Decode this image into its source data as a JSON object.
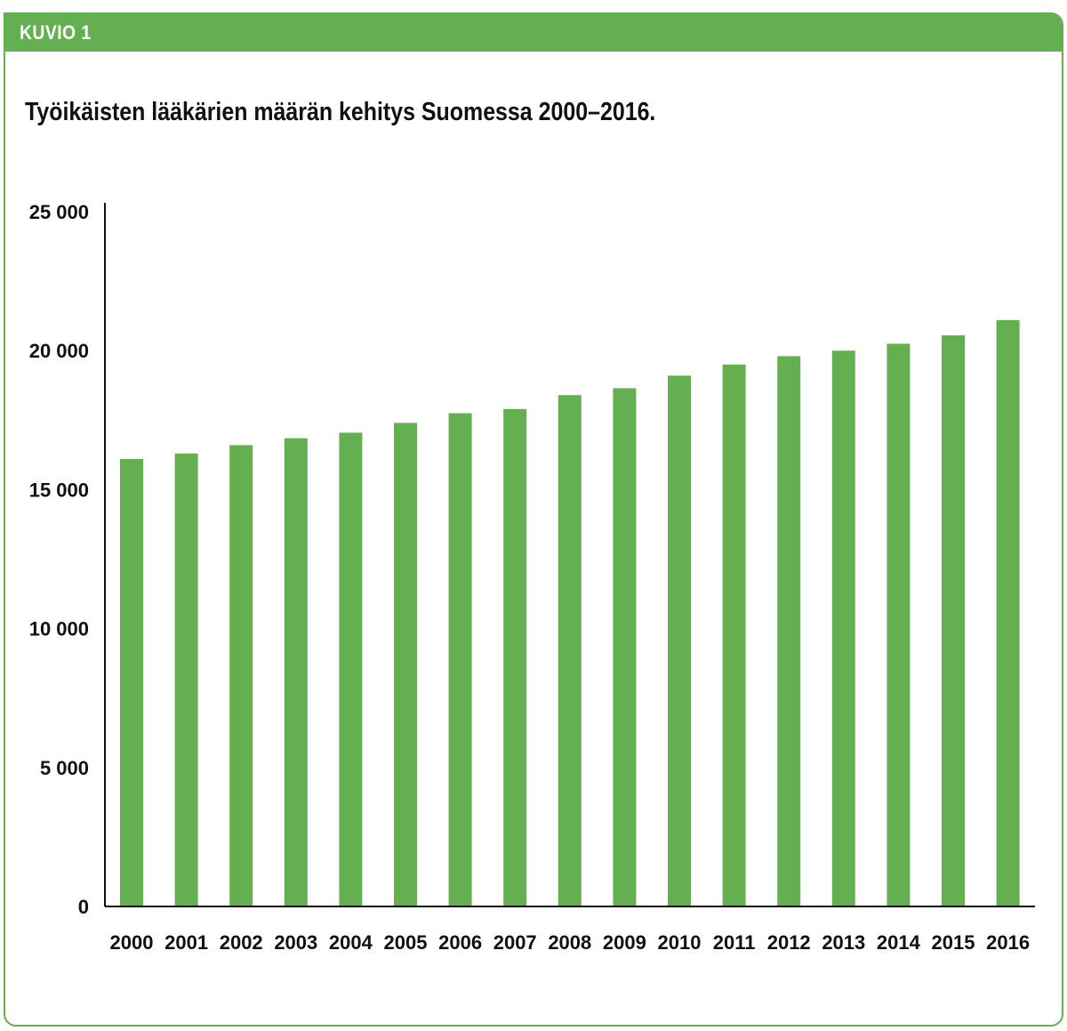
{
  "figure_label": "KUVIO 1",
  "colors": {
    "accent": "#64b050",
    "bar": "#64b050",
    "axis": "#111111",
    "text": "#111111"
  },
  "chart_data": {
    "type": "bar",
    "title": "Työikäisten lääkärien määrän kehitys Suomessa 2000–2016.",
    "xlabel": "",
    "ylabel": "",
    "ylim": [
      0,
      25000
    ],
    "y_ticks": [
      0,
      5000,
      10000,
      15000,
      20000,
      25000
    ],
    "y_tick_labels": [
      "0",
      "5 000",
      "10 000",
      "15 000",
      "20 000",
      "25 000"
    ],
    "categories": [
      "2000",
      "2001",
      "2002",
      "2003",
      "2004",
      "2005",
      "2006",
      "2007",
      "2008",
      "2009",
      "2010",
      "2011",
      "2012",
      "2013",
      "2014",
      "2015",
      "2016"
    ],
    "values": [
      16100,
      16300,
      16600,
      16850,
      17050,
      17400,
      17750,
      17900,
      18400,
      18650,
      19100,
      19500,
      19800,
      20000,
      20250,
      20550,
      21100
    ],
    "grid": false,
    "legend": "none"
  }
}
